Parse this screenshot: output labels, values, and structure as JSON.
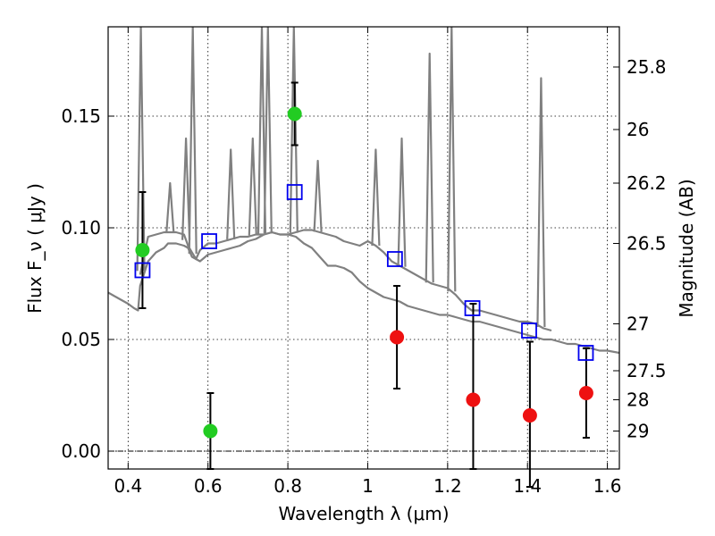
{
  "chart_data": {
    "type": "scatter",
    "title": "",
    "xlabel": "Wavelength  λ (μm)",
    "ylabel": "Flux  F_ν  ( μJy )",
    "y2label": "Magnitude (AB)",
    "xlim": [
      0.35,
      1.63
    ],
    "ylim": [
      -0.008,
      0.19
    ],
    "grid": true,
    "x_ticks": [
      0.4,
      0.6,
      0.8,
      1.0,
      1.2,
      1.4,
      1.6
    ],
    "x_tick_labels": [
      "0.4",
      "0.6",
      "0.8",
      "1",
      "1.2",
      "1.4",
      "1.6"
    ],
    "y_ticks": [
      0.0,
      0.05,
      0.1,
      0.15
    ],
    "y_tick_labels": [
      "0.00",
      "0.05",
      "0.10",
      "0.15"
    ],
    "y2_ticks": [
      {
        "label": "25.8",
        "flux": 0.172
      },
      {
        "label": "26",
        "flux": 0.144
      },
      {
        "label": "26.2",
        "flux": 0.12
      },
      {
        "label": "26.5",
        "flux": 0.093
      },
      {
        "label": "27",
        "flux": 0.057
      },
      {
        "label": "27.5",
        "flux": 0.036
      },
      {
        "label": "28",
        "flux": 0.023
      },
      {
        "label": "29",
        "flux": 0.009
      }
    ],
    "colors": {
      "spectrum": "#808080",
      "optical": "#22cc22",
      "infrared": "#ee1111",
      "model": "#0000ee",
      "errorbar": "#000000"
    },
    "series": [
      {
        "kind": "spectrum",
        "x": [
          0.35,
          0.37,
          0.4,
          0.415,
          0.425,
          0.43,
          0.45,
          0.47,
          0.49,
          0.5,
          0.52,
          0.54,
          0.55,
          0.56,
          0.57,
          0.58,
          0.6,
          0.62,
          0.64,
          0.66,
          0.68,
          0.7,
          0.72,
          0.74,
          0.76,
          0.78,
          0.8,
          0.82,
          0.84,
          0.86,
          0.88,
          0.9,
          0.92,
          0.94,
          0.96,
          0.98,
          1.0,
          1.02,
          1.04,
          1.06,
          1.08,
          1.1,
          1.12,
          1.14,
          1.16,
          1.18,
          1.2,
          1.22,
          1.24,
          1.26,
          1.28,
          1.3,
          1.32,
          1.34,
          1.36,
          1.38,
          1.4,
          1.42,
          1.44,
          1.46,
          1.48,
          1.5,
          1.52,
          1.54,
          1.56,
          1.58,
          1.6,
          1.63
        ],
        "y": [
          0.071,
          0.069,
          0.066,
          0.064,
          0.063,
          0.074,
          0.085,
          0.089,
          0.091,
          0.093,
          0.093,
          0.092,
          0.091,
          0.087,
          0.086,
          0.085,
          0.088,
          0.089,
          0.09,
          0.091,
          0.092,
          0.094,
          0.095,
          0.097,
          0.098,
          0.097,
          0.097,
          0.096,
          0.093,
          0.091,
          0.087,
          0.083,
          0.083,
          0.082,
          0.08,
          0.076,
          0.073,
          0.071,
          0.069,
          0.068,
          0.067,
          0.065,
          0.064,
          0.063,
          0.062,
          0.061,
          0.061,
          0.06,
          0.059,
          0.058,
          0.058,
          0.057,
          0.056,
          0.055,
          0.054,
          0.053,
          0.052,
          0.051,
          0.05,
          0.05,
          0.049,
          0.048,
          0.048,
          0.047,
          0.046,
          0.045,
          0.045,
          0.044
        ]
      },
      {
        "kind": "spectrum-continuum",
        "x": [
          0.43,
          0.45,
          0.47,
          0.49,
          0.5,
          0.52,
          0.54,
          0.55,
          0.56,
          0.57,
          0.58,
          0.6,
          0.62,
          0.64,
          0.66,
          0.68,
          0.7,
          0.72,
          0.74,
          0.76,
          0.78,
          0.8,
          0.82,
          0.84,
          0.86,
          0.88,
          0.9,
          0.92,
          0.94,
          0.96,
          0.98,
          1.0,
          1.02,
          1.04,
          1.06,
          1.08,
          1.1,
          1.12,
          1.14,
          1.16,
          1.18,
          1.2,
          1.22,
          1.24,
          1.26,
          1.28,
          1.3,
          1.32,
          1.34,
          1.36,
          1.38,
          1.4,
          1.42,
          1.44,
          1.46
        ],
        "y": [
          0.079,
          0.096,
          0.097,
          0.098,
          0.098,
          0.098,
          0.097,
          0.092,
          0.089,
          0.086,
          0.09,
          0.093,
          0.093,
          0.094,
          0.095,
          0.096,
          0.096,
          0.097,
          0.097,
          0.098,
          0.097,
          0.097,
          0.098,
          0.099,
          0.099,
          0.098,
          0.097,
          0.096,
          0.094,
          0.093,
          0.092,
          0.094,
          0.092,
          0.089,
          0.085,
          0.083,
          0.081,
          0.079,
          0.077,
          0.075,
          0.074,
          0.073,
          0.07,
          0.066,
          0.063,
          0.063,
          0.062,
          0.061,
          0.06,
          0.059,
          0.058,
          0.058,
          0.057,
          0.055,
          0.054
        ]
      },
      {
        "kind": "emission-lines",
        "x": [
          0.432,
          0.505,
          0.545,
          0.562,
          0.657,
          0.712,
          0.735,
          0.75,
          0.815,
          0.875,
          1.02,
          1.085,
          1.155,
          1.21,
          1.434
        ],
        "y": [
          0.19,
          0.12,
          0.14,
          0.19,
          0.135,
          0.14,
          0.19,
          0.19,
          0.19,
          0.13,
          0.135,
          0.14,
          0.178,
          0.19,
          0.167
        ]
      },
      {
        "kind": "model",
        "name": "",
        "x": [
          0.436,
          0.603,
          0.817,
          1.068,
          1.262,
          1.404,
          1.546
        ],
        "y": [
          0.081,
          0.094,
          0.116,
          0.086,
          0.064,
          0.054,
          0.044
        ]
      },
      {
        "kind": "optical",
        "name": "",
        "x": [
          0.436,
          0.606,
          0.817
        ],
        "y": [
          0.09,
          0.009,
          0.151
        ],
        "yerr_low": [
          0.026,
          0.017,
          0.014
        ],
        "yerr_high": [
          0.026,
          0.017,
          0.014
        ]
      },
      {
        "kind": "infrared",
        "name": "",
        "x": [
          1.073,
          1.264,
          1.406,
          1.547
        ],
        "y": [
          0.051,
          0.023,
          0.016,
          0.026
        ],
        "yerr_low": [
          0.023,
          0.031,
          0.032,
          0.02
        ],
        "yerr_high": [
          0.023,
          0.043,
          0.033,
          0.02
        ]
      }
    ]
  }
}
